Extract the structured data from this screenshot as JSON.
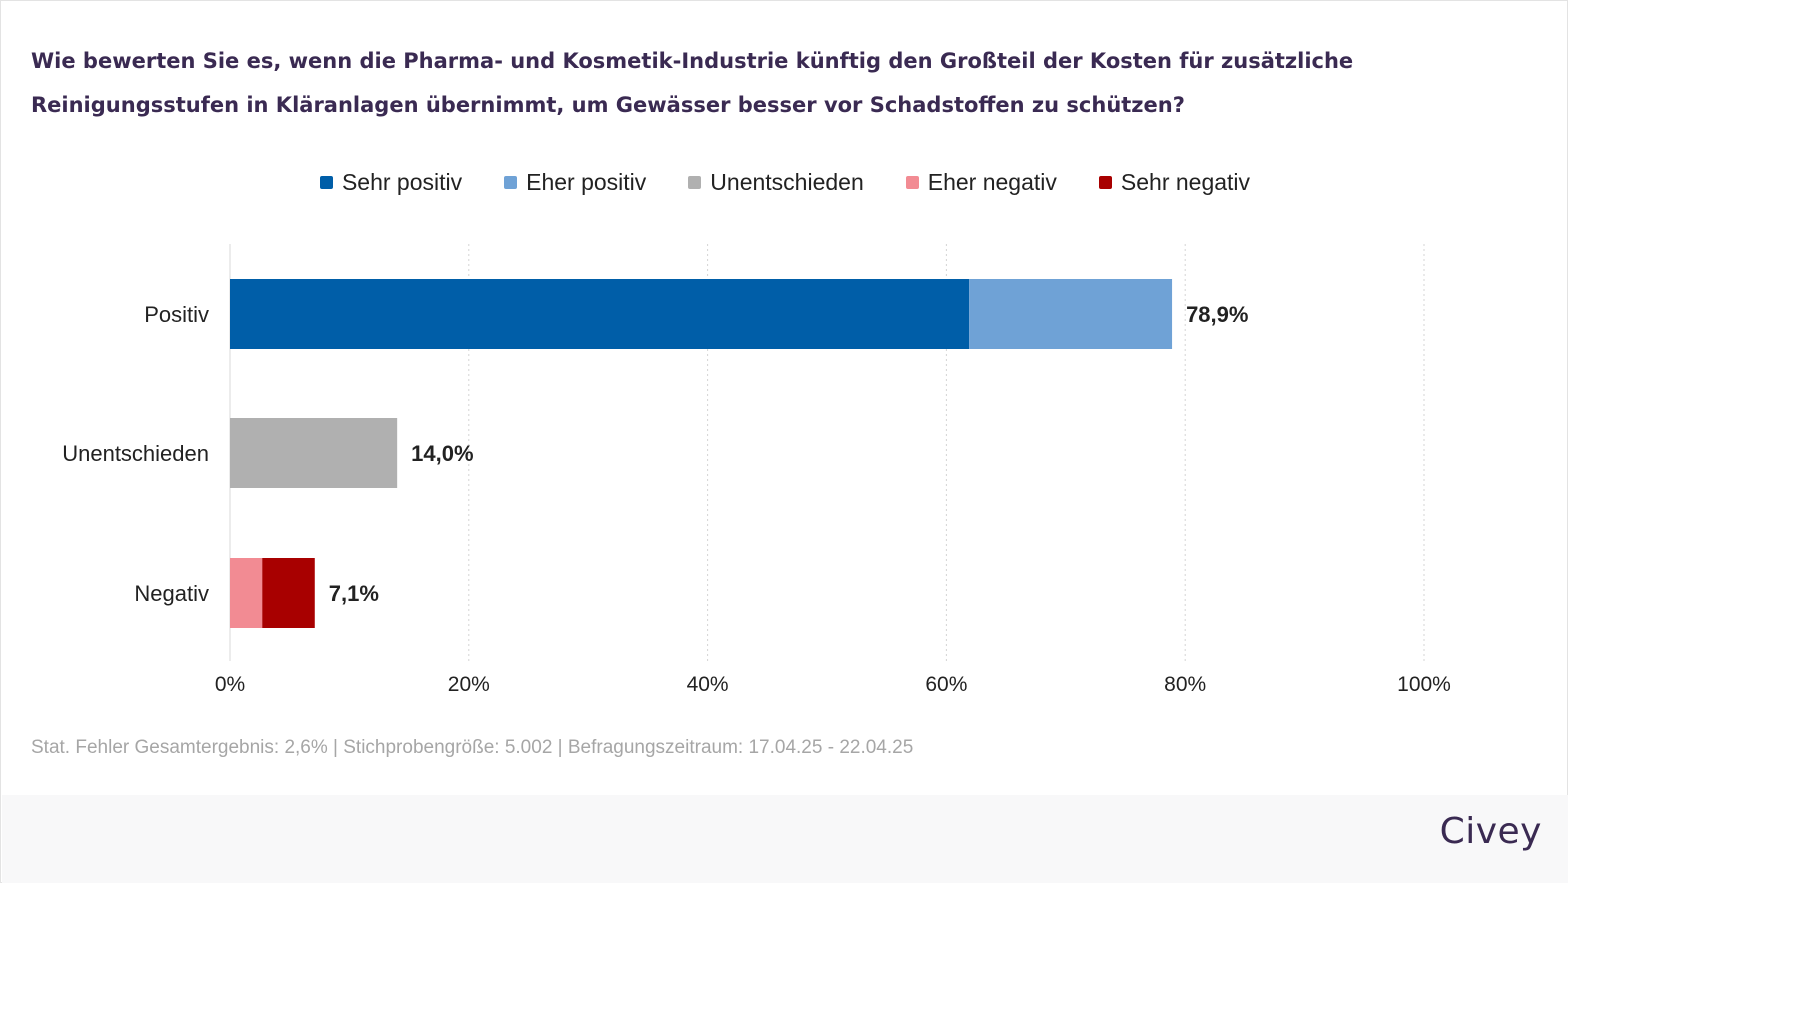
{
  "title": "Wie bewerten Sie es, wenn die Pharma- und Kosmetik-Industrie künftig den Großteil der Kosten für zusätzliche Reinigungsstufen in Kläranlagen übernimmt, um Gewässer besser vor Schadstoffen zu schützen?",
  "legend": [
    {
      "label": "Sehr positiv",
      "color": "#005ea8"
    },
    {
      "label": "Eher positiv",
      "color": "#6fa2d6"
    },
    {
      "label": "Unentschieden",
      "color": "#b0b0b0"
    },
    {
      "label": "Eher negativ",
      "color": "#f28b93"
    },
    {
      "label": "Sehr negativ",
      "color": "#a80000"
    }
  ],
  "chart_data": {
    "type": "bar",
    "orientation": "horizontal",
    "stacked": true,
    "categories": [
      "Positiv",
      "Unentschieden",
      "Negativ"
    ],
    "series": [
      {
        "name": "Sehr positiv",
        "values": [
          61.9,
          0,
          0
        ],
        "color": "#005ea8"
      },
      {
        "name": "Eher positiv",
        "values": [
          17.0,
          0,
          0
        ],
        "color": "#6fa2d6"
      },
      {
        "name": "Unentschieden",
        "values": [
          0,
          14.0,
          0
        ],
        "color": "#b0b0b0"
      },
      {
        "name": "Eher negativ",
        "values": [
          0,
          0,
          2.7
        ],
        "color": "#f28b93"
      },
      {
        "name": "Sehr negativ",
        "values": [
          0,
          0,
          4.4
        ],
        "color": "#a80000"
      }
    ],
    "totals": [
      "78,9%",
      "14,0%",
      "7,1%"
    ],
    "xlim": [
      0,
      100
    ],
    "xticks": [
      0,
      20,
      40,
      60,
      80,
      100
    ],
    "xtick_labels": [
      "0%",
      "20%",
      "40%",
      "60%",
      "80%",
      "100%"
    ],
    "xlabel": "",
    "ylabel": "",
    "grid": "vertical dotted",
    "legend_position": "top-center"
  },
  "note": "Stat. Fehler Gesamtergebnis: 2,6% | Stichprobengröße: 5.002 | Befragungszeitraum: 17.04.25 - 22.04.25",
  "brand": "Civey"
}
